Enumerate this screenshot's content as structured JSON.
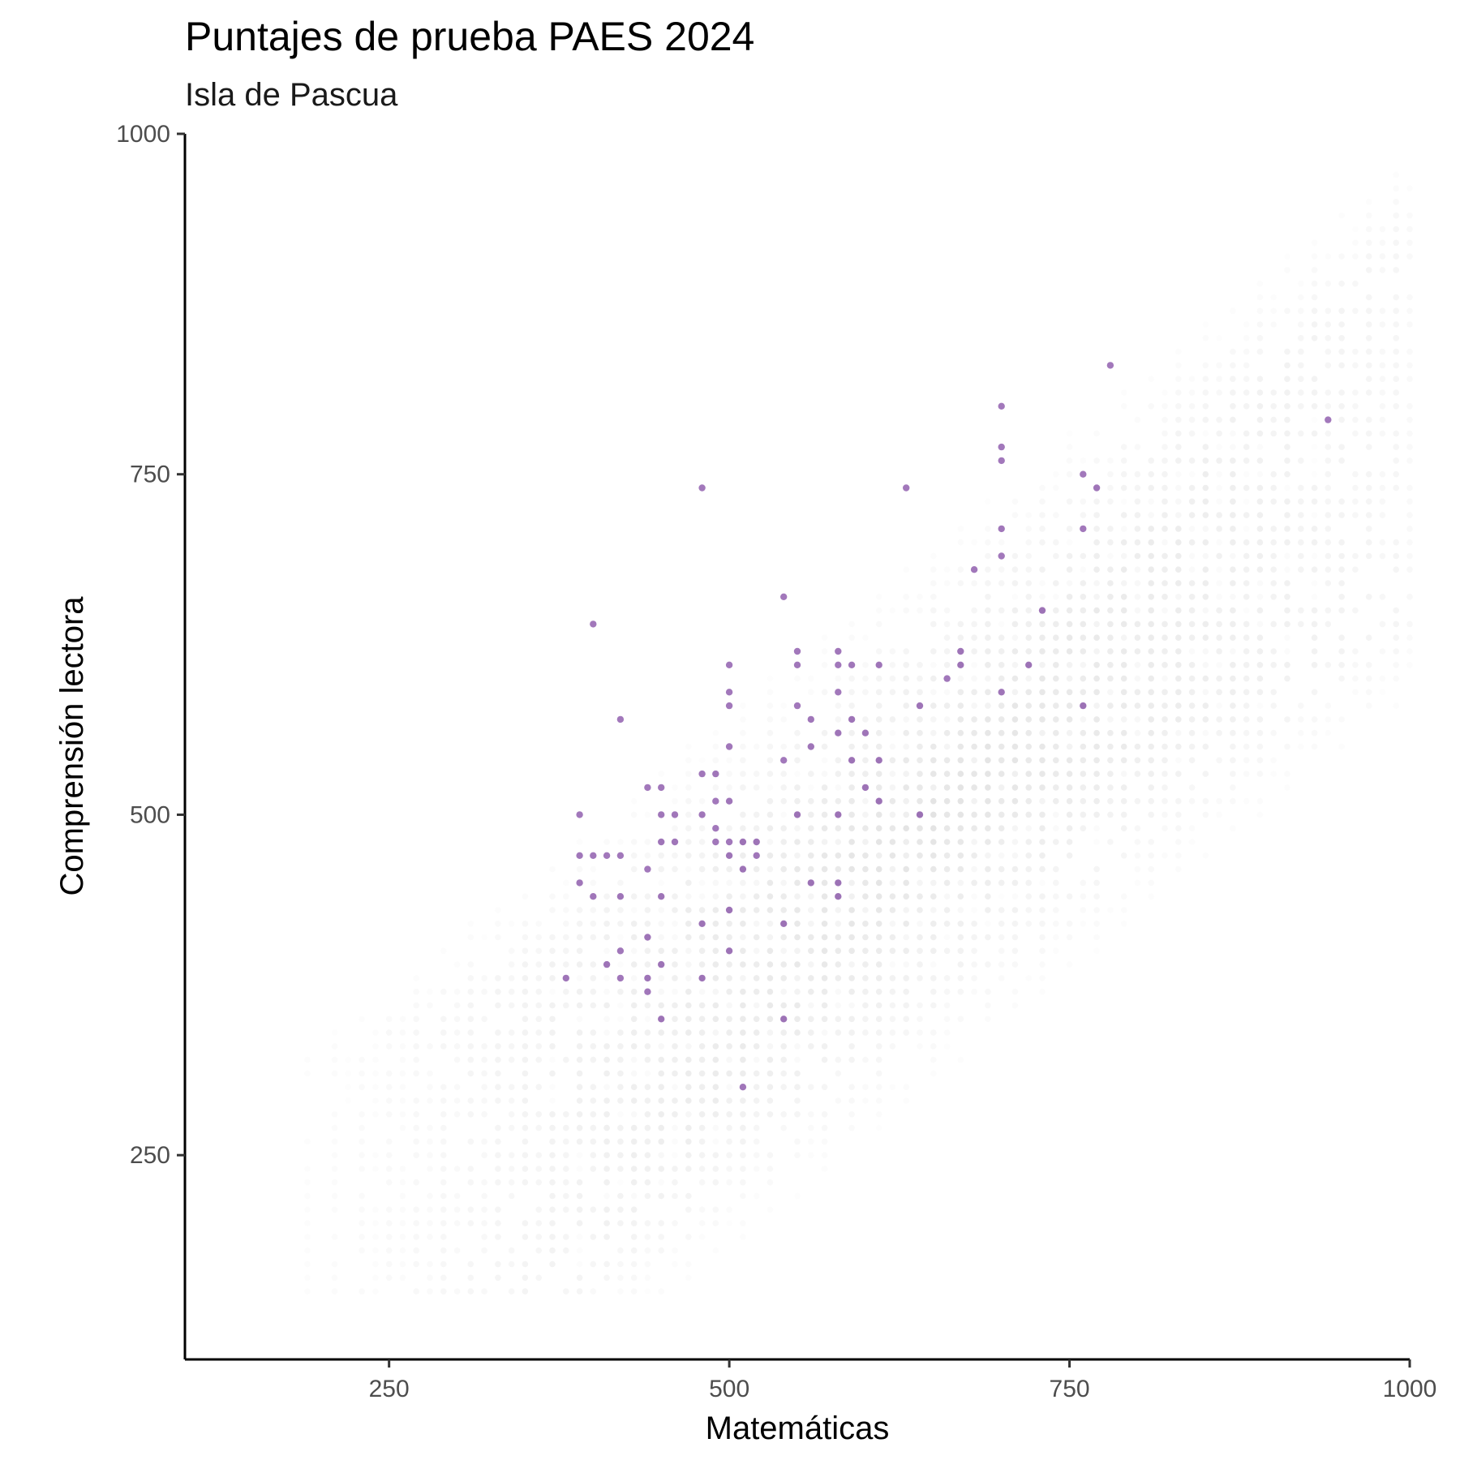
{
  "chart_data": {
    "type": "scatter",
    "title": "Puntajes de prueba PAES 2024",
    "subtitle": "Isla de Pascua",
    "xlabel": "Matemáticas",
    "ylabel": "Comprensión lectora",
    "xlim": [
      100,
      1000
    ],
    "ylim": [
      100,
      1000
    ],
    "xticks": [
      250,
      500,
      750,
      1000
    ],
    "yticks": [
      250,
      500,
      750,
      1000
    ],
    "grid": false,
    "colors": {
      "background_points": "#cccccc",
      "highlight_points": "#7b3f9e"
    },
    "series": [
      {
        "x": [
          380,
          390,
          390,
          390,
          400,
          400,
          400,
          410,
          410,
          420,
          420,
          420,
          420,
          420,
          440,
          440,
          440,
          440,
          440,
          450,
          450,
          450,
          450,
          450,
          450,
          460,
          460,
          480,
          480,
          480,
          480,
          480,
          490,
          490,
          490,
          490,
          500,
          500,
          500,
          500,
          500,
          500,
          500,
          500,
          500,
          510,
          510,
          510,
          520,
          520,
          540,
          540,
          540,
          540,
          550,
          550,
          550,
          550,
          560,
          560,
          560,
          580,
          580,
          580,
          580,
          580,
          580,
          580,
          590,
          590,
          590,
          600,
          600,
          610,
          610,
          610,
          630,
          640,
          640,
          660,
          670,
          670,
          680,
          700,
          700,
          700,
          700,
          700,
          700,
          720,
          730,
          760,
          760,
          760,
          770,
          780,
          940
        ],
        "y": [
          380,
          470,
          450,
          500,
          640,
          470,
          440,
          470,
          390,
          570,
          470,
          400,
          380,
          440,
          520,
          460,
          410,
          380,
          370,
          520,
          500,
          480,
          440,
          390,
          350,
          500,
          480,
          740,
          500,
          420,
          380,
          530,
          530,
          510,
          490,
          480,
          610,
          590,
          580,
          550,
          510,
          480,
          470,
          430,
          400,
          480,
          460,
          300,
          480,
          470,
          660,
          540,
          420,
          350,
          620,
          610,
          580,
          500,
          570,
          550,
          450,
          620,
          610,
          590,
          560,
          500,
          450,
          440,
          610,
          570,
          540,
          560,
          520,
          610,
          540,
          510,
          740,
          580,
          500,
          600,
          620,
          610,
          680,
          800,
          770,
          760,
          710,
          690,
          590,
          610,
          650,
          750,
          710,
          580,
          740,
          830,
          790
        ]
      }
    ]
  }
}
